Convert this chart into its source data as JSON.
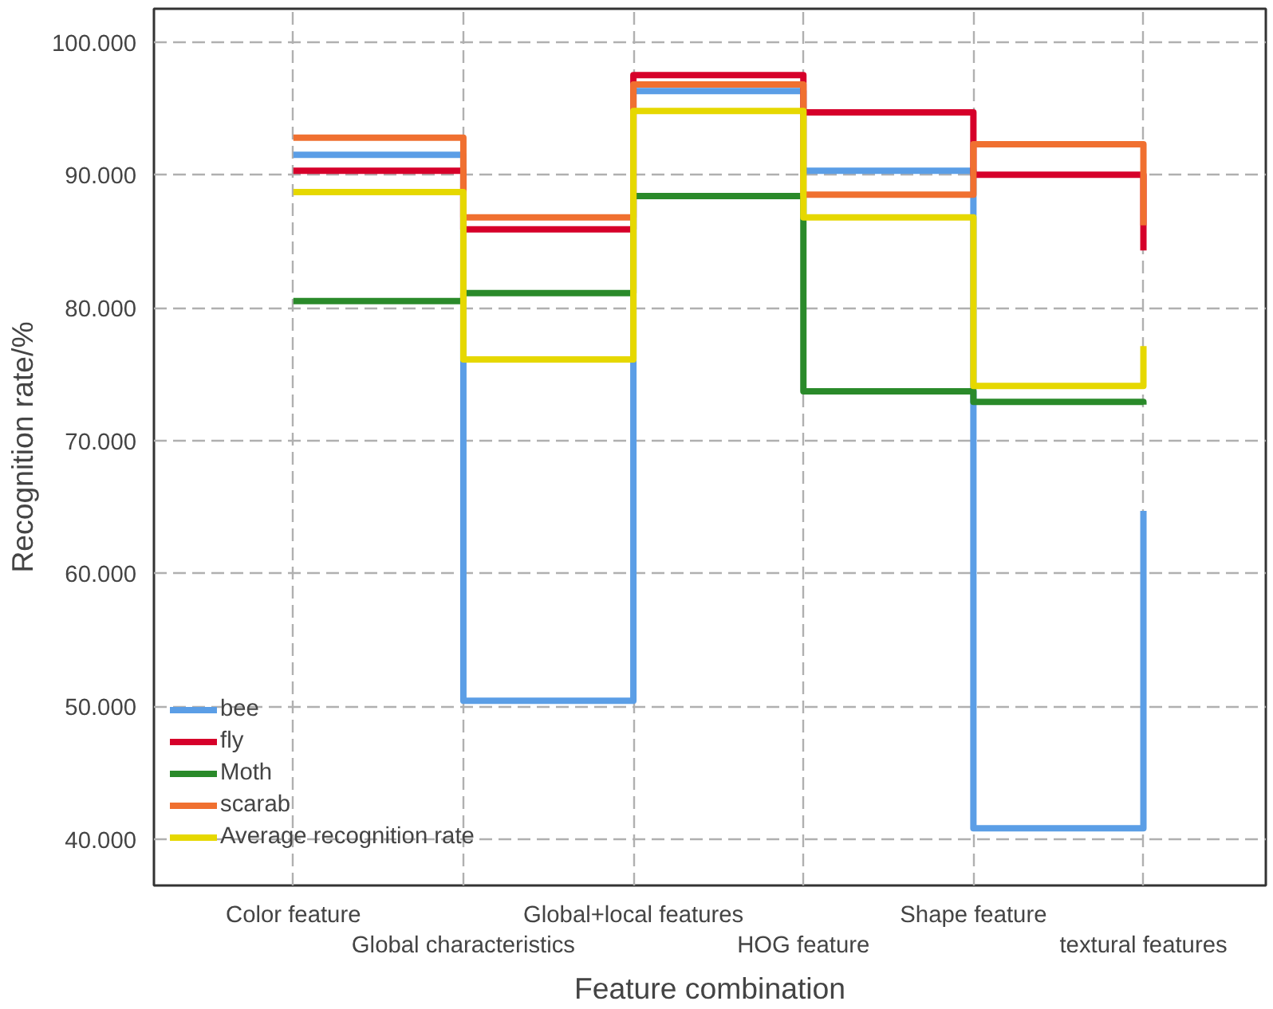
{
  "chart_data": {
    "type": "step",
    "xlabel": "Feature combination",
    "ylabel": "Recognition rate/%",
    "categories": [
      "Color feature",
      "Global characteristics",
      "Global+local features",
      "HOG feature",
      "Shape feature",
      "textural features"
    ],
    "series": [
      {
        "name": "bee",
        "color": "#5b9ee6",
        "values": [
          91.5,
          50.4,
          96.3,
          90.3,
          40.8,
          64.7
        ]
      },
      {
        "name": "fly",
        "color": "#d6002a",
        "values": [
          90.3,
          85.9,
          97.5,
          94.7,
          90.0,
          84.3
        ]
      },
      {
        "name": "Moth",
        "color": "#2a8a2a",
        "values": [
          80.5,
          81.1,
          88.4,
          73.7,
          72.9,
          72.7
        ]
      },
      {
        "name": "scarab",
        "color": "#f07030",
        "values": [
          92.8,
          86.8,
          96.8,
          88.5,
          92.3,
          86.2
        ]
      },
      {
        "name": "Average recognition rate",
        "color": "#e6d800",
        "values": [
          88.7,
          76.1,
          94.8,
          86.8,
          74.1,
          77.1
        ]
      }
    ],
    "ylim": [
      36.5,
      102.5
    ],
    "yticks": [
      {
        "value": 40,
        "label": "40.000"
      },
      {
        "value": 50,
        "label": "50.000"
      },
      {
        "value": 60,
        "label": "60.000"
      },
      {
        "value": 70,
        "label": "70.000"
      },
      {
        "value": 80,
        "label": "80.000"
      },
      {
        "value": 90,
        "label": "90.000"
      },
      {
        "value": 100,
        "label": "100.000"
      }
    ],
    "grid": true,
    "legend": "bottom left",
    "line_style": "solid"
  }
}
